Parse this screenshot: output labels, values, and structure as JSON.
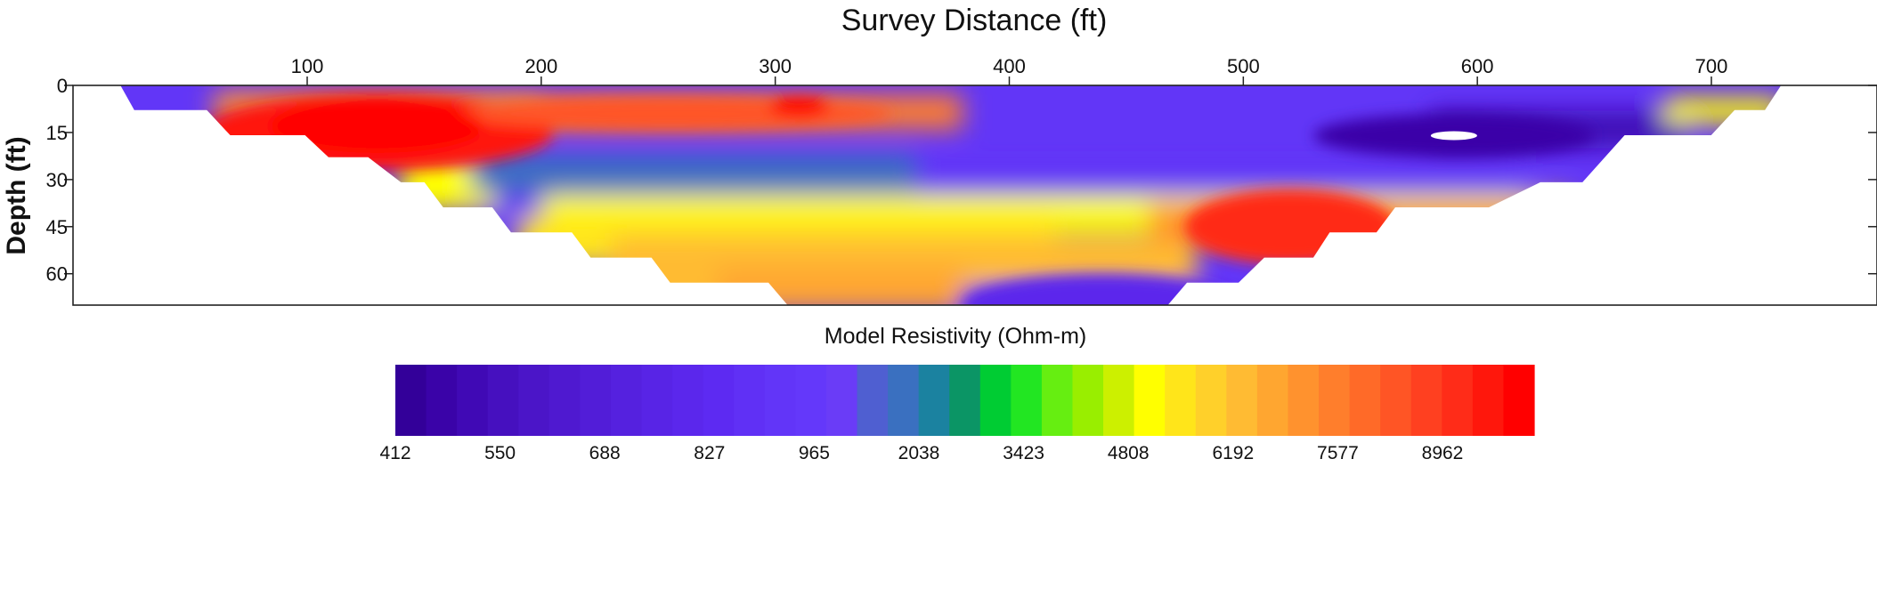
{
  "chart_data": [
    {
      "type": "heatmap",
      "title": "Survey Distance (ft)",
      "xlabel": "Survey Distance (ft)",
      "ylabel": "Depth (ft)",
      "xlim": [
        0,
        750
      ],
      "ylim": [
        0,
        70
      ],
      "x_ticks": [
        100,
        200,
        300,
        400,
        500,
        600,
        700
      ],
      "y_ticks": [
        0,
        15,
        30,
        45,
        60
      ],
      "x_axis_position": "top",
      "y_axis_inverted": true,
      "section_outline": [
        [
          20,
          0
        ],
        [
          730,
          0
        ],
        [
          723,
          8
        ],
        [
          710,
          8
        ],
        [
          700,
          16
        ],
        [
          677,
          16
        ],
        [
          663,
          16
        ],
        [
          645,
          31
        ],
        [
          627,
          31
        ],
        [
          605,
          39
        ],
        [
          565,
          39
        ],
        [
          557,
          47
        ],
        [
          537,
          47
        ],
        [
          530,
          55
        ],
        [
          509,
          55
        ],
        [
          498,
          63
        ],
        [
          483,
          63
        ],
        [
          476,
          63
        ],
        [
          468,
          70
        ],
        [
          305,
          70
        ],
        [
          297,
          63
        ],
        [
          255,
          63
        ],
        [
          247,
          55
        ],
        [
          221,
          55
        ],
        [
          213,
          47
        ],
        [
          187,
          47
        ],
        [
          179,
          39
        ],
        [
          158,
          39
        ],
        [
          150,
          31
        ],
        [
          140,
          31
        ],
        [
          126,
          23
        ],
        [
          109,
          23
        ],
        [
          99,
          16
        ],
        [
          67,
          16
        ],
        [
          57,
          8
        ],
        [
          26,
          8
        ]
      ],
      "anomalies": [
        {
          "name": "high-resistivity-zone-west",
          "cx": 130,
          "cy": 15,
          "rx": 75,
          "ry": 12,
          "value": 9800
        },
        {
          "name": "high-resistivity-lens",
          "cx": 310,
          "cy": 8,
          "rx": 18,
          "ry": 4,
          "value": 9500
        },
        {
          "name": "shallow-resistive-band",
          "cx": 255,
          "cy": 9,
          "rx": 95,
          "ry": 5,
          "value": 7200
        },
        {
          "name": "low-resistivity-core",
          "cx": 590,
          "cy": 16,
          "rx": 60,
          "ry": 7,
          "value": 450
        },
        {
          "name": "deep-conductive-lobe",
          "cx": 440,
          "cy": 70,
          "rx": 60,
          "ry": 10,
          "value": 900
        },
        {
          "name": "deep-resistive-east",
          "cx": 520,
          "cy": 45,
          "rx": 45,
          "ry": 12,
          "value": 8500
        }
      ],
      "legend": {
        "title": "Model Resistivity (Ohm-m)",
        "labels": [
          "412",
          "550",
          "688",
          "827",
          "965",
          "2038",
          "3423",
          "4808",
          "6192",
          "7577",
          "8962"
        ],
        "colors": [
          "#330099",
          "#3a03a8",
          "#4009b5",
          "#4610bf",
          "#4b15c8",
          "#4f19d0",
          "#521dd8",
          "#5521df",
          "#5824e6",
          "#5b27ec",
          "#5d2af2",
          "#6030f5",
          "#6235f8",
          "#6438fa",
          "#6a3cf7",
          "#4f5fd1",
          "#3a70c0",
          "#1b82a0",
          "#0b9565",
          "#00cc33",
          "#22e622",
          "#66ee11",
          "#99ee00",
          "#ccf000",
          "#ffff00",
          "#ffe51a",
          "#ffd02a",
          "#ffbb33",
          "#ffa630",
          "#ff922e",
          "#ff7e2c",
          "#ff6a28",
          "#ff5525",
          "#ff4020",
          "#ff2c18",
          "#ff170c",
          "#ff0000"
        ],
        "position": "bottom"
      }
    }
  ]
}
